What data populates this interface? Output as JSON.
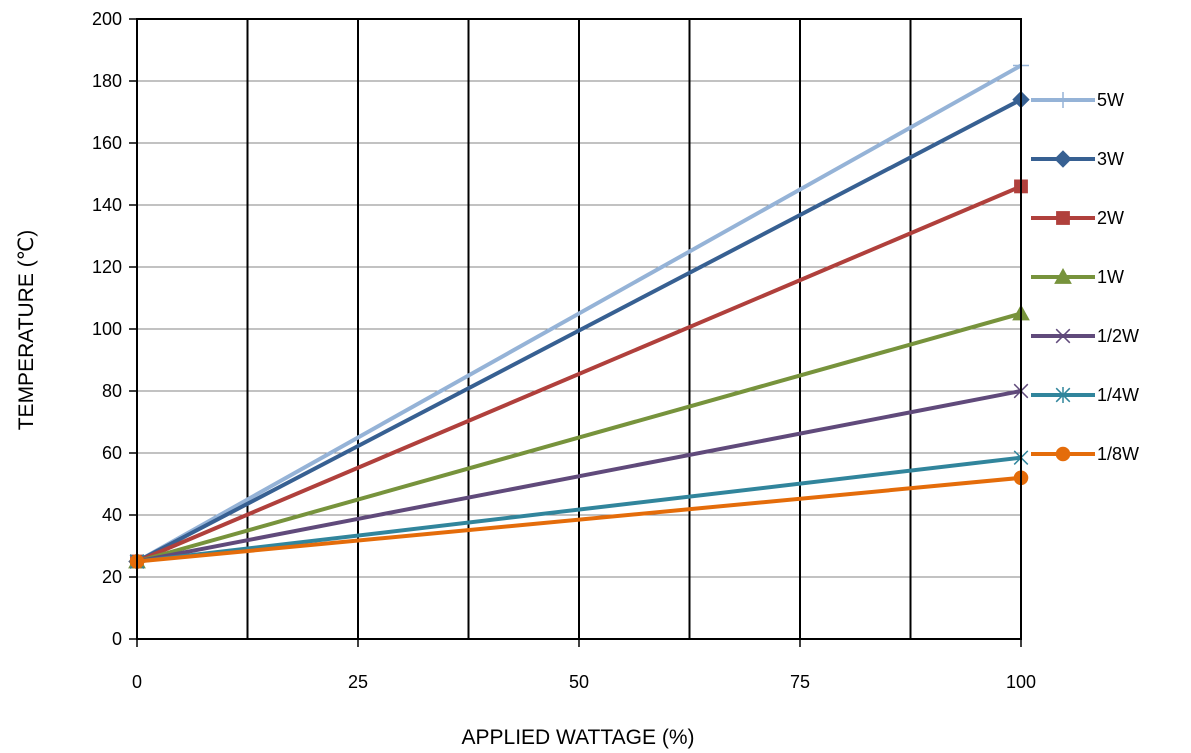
{
  "chart_data": {
    "type": "line",
    "title": "",
    "xlabel": "APPLIED WATTAGE (%)",
    "ylabel": "TEMPERATURE (℃)",
    "xlim": [
      0,
      100
    ],
    "ylim": [
      0,
      200
    ],
    "x_ticks": [
      0,
      25,
      50,
      75,
      100
    ],
    "x_tick_labels": [
      "0",
      "25",
      "50",
      "75",
      "100"
    ],
    "x_gridlines": [
      12.5,
      25,
      37.5,
      50,
      62.5,
      75,
      87.5
    ],
    "y_ticks": [
      0,
      20,
      40,
      60,
      80,
      100,
      120,
      140,
      160,
      180,
      200
    ],
    "y_tick_labels": [
      "0",
      "20",
      "40",
      "60",
      "80",
      "100",
      "120",
      "140",
      "160",
      "180",
      "200"
    ],
    "grid": true,
    "legend_position": "right",
    "x": [
      0,
      100
    ],
    "series": [
      {
        "name": "5W",
        "values": [
          25,
          185
        ],
        "color": "#95b3d7",
        "marker": "plus"
      },
      {
        "name": "3W",
        "values": [
          25,
          174
        ],
        "color": "#376092",
        "marker": "diamond"
      },
      {
        "name": "2W",
        "values": [
          25,
          146
        ],
        "color": "#b0403c",
        "marker": "square"
      },
      {
        "name": "1W",
        "values": [
          25,
          105
        ],
        "color": "#77933c",
        "marker": "triangle"
      },
      {
        "name": "1/2W",
        "values": [
          25,
          80
        ],
        "color": "#604a7b",
        "marker": "x"
      },
      {
        "name": "1/4W",
        "values": [
          25,
          58.5
        ],
        "color": "#31859c",
        "marker": "star"
      },
      {
        "name": "1/8W",
        "values": [
          25,
          52
        ],
        "color": "#e46c0a",
        "marker": "circle"
      }
    ]
  }
}
